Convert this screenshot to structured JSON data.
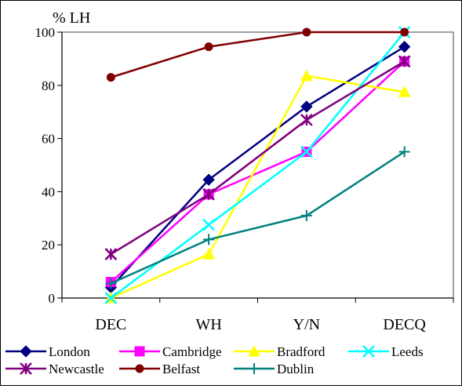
{
  "chart_data": {
    "type": "line",
    "title": "",
    "ylabel": "% LH",
    "xlabel": "",
    "categories": [
      "DEC",
      "WH",
      "Y/N",
      "DECQ"
    ],
    "ylim": [
      0,
      100
    ],
    "yticks": [
      0,
      20,
      40,
      60,
      80,
      100
    ],
    "grid": false,
    "legend_position": "bottom",
    "series": [
      {
        "name": "London",
        "values": [
          4,
          44.5,
          72,
          94.5
        ],
        "color": "#000080",
        "marker": "diamond"
      },
      {
        "name": "Cambridge",
        "values": [
          6,
          39,
          55,
          89
        ],
        "color": "#ff00ff",
        "marker": "square"
      },
      {
        "name": "Bradford",
        "values": [
          0,
          16.5,
          83.5,
          77.5
        ],
        "color": "#ffff00",
        "marker": "triangle"
      },
      {
        "name": "Leeds",
        "values": [
          0,
          27.5,
          55,
          100
        ],
        "color": "#00ffff",
        "marker": "x"
      },
      {
        "name": "Newcastle",
        "values": [
          16.5,
          39,
          67,
          89
        ],
        "color": "#800080",
        "marker": "star"
      },
      {
        "name": "Belfast",
        "values": [
          83,
          94.5,
          100,
          100
        ],
        "color": "#800000",
        "marker": "circle"
      },
      {
        "name": "Dublin",
        "values": [
          5.5,
          22,
          31,
          55
        ],
        "color": "#008080",
        "marker": "plus"
      }
    ]
  }
}
